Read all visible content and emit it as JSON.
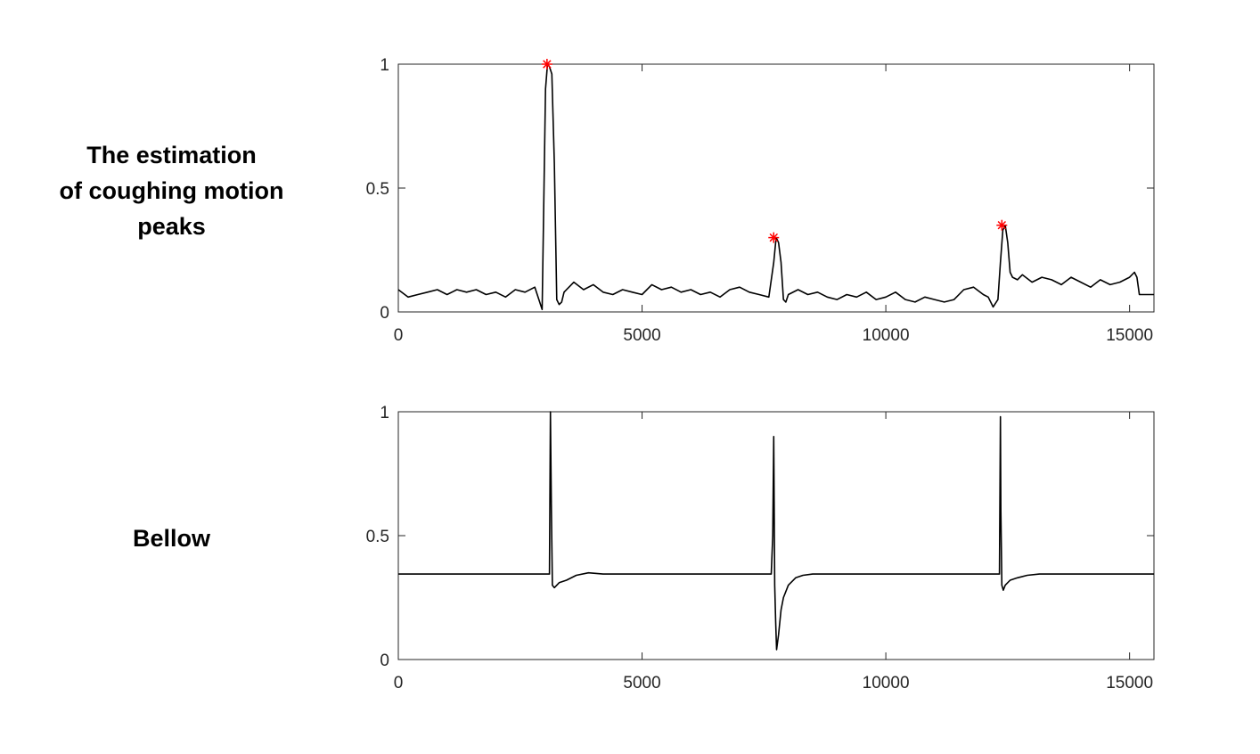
{
  "labels": {
    "top": "The estimation\nof coughing motion\npeaks",
    "bottom": "Bellow"
  },
  "colors": {
    "line": "#000000",
    "axis": "#262626",
    "marker": "#ff0000"
  },
  "chart_data": [
    {
      "type": "line",
      "xlim": [
        0,
        15500
      ],
      "ylim": [
        0,
        1
      ],
      "xticks": [
        0,
        5000,
        10000,
        15000
      ],
      "yticks": [
        0,
        0.5,
        1
      ],
      "xtick_labels": [
        "0",
        "5000",
        "10000",
        "15000"
      ],
      "ytick_labels": [
        "0",
        "0.5",
        "1"
      ],
      "grid": false,
      "series": [
        {
          "x": [
            0,
            200,
            400,
            600,
            800,
            1000,
            1200,
            1400,
            1600,
            1800,
            2000,
            2200,
            2400,
            2600,
            2800,
            2950,
            3020,
            3060,
            3100,
            3150,
            3200,
            3250,
            3300,
            3350,
            3400,
            3500,
            3600,
            3800,
            4000,
            4200,
            4400,
            4600,
            4800,
            5000,
            5200,
            5400,
            5600,
            5800,
            6000,
            6200,
            6400,
            6600,
            6800,
            7000,
            7200,
            7400,
            7600,
            7700,
            7750,
            7800,
            7850,
            7900,
            7950,
            8000,
            8200,
            8400,
            8600,
            8800,
            9000,
            9200,
            9400,
            9600,
            9800,
            10000,
            10200,
            10400,
            10600,
            10800,
            11000,
            11200,
            11400,
            11600,
            11800,
            12000,
            12100,
            12200,
            12300,
            12350,
            12400,
            12450,
            12500,
            12550,
            12600,
            12700,
            12800,
            13000,
            13200,
            13400,
            13600,
            13800,
            14000,
            14200,
            14400,
            14600,
            14800,
            15000,
            15100,
            15150,
            15200,
            15500
          ],
          "y": [
            0.09,
            0.06,
            0.07,
            0.08,
            0.09,
            0.07,
            0.09,
            0.08,
            0.09,
            0.07,
            0.08,
            0.06,
            0.09,
            0.08,
            0.1,
            0.01,
            0.9,
            1.0,
            0.99,
            0.96,
            0.6,
            0.05,
            0.03,
            0.04,
            0.08,
            0.1,
            0.12,
            0.09,
            0.11,
            0.08,
            0.07,
            0.09,
            0.08,
            0.07,
            0.11,
            0.09,
            0.1,
            0.08,
            0.09,
            0.07,
            0.08,
            0.06,
            0.09,
            0.1,
            0.08,
            0.07,
            0.06,
            0.2,
            0.3,
            0.28,
            0.2,
            0.05,
            0.04,
            0.07,
            0.09,
            0.07,
            0.08,
            0.06,
            0.05,
            0.07,
            0.06,
            0.08,
            0.05,
            0.06,
            0.08,
            0.05,
            0.04,
            0.06,
            0.05,
            0.04,
            0.05,
            0.09,
            0.1,
            0.07,
            0.06,
            0.02,
            0.05,
            0.2,
            0.33,
            0.35,
            0.28,
            0.16,
            0.14,
            0.13,
            0.15,
            0.12,
            0.14,
            0.13,
            0.11,
            0.14,
            0.12,
            0.1,
            0.13,
            0.11,
            0.12,
            0.14,
            0.16,
            0.14,
            0.07,
            0.07
          ]
        }
      ],
      "markers": {
        "symbol": "asterisk",
        "x": [
          3050,
          7700,
          12380
        ],
        "y": [
          1.0,
          0.3,
          0.35
        ]
      }
    },
    {
      "type": "line",
      "xlim": [
        0,
        15500
      ],
      "ylim": [
        0,
        1
      ],
      "xticks": [
        0,
        5000,
        10000,
        15000
      ],
      "yticks": [
        0,
        0.5,
        1
      ],
      "xtick_labels": [
        "0",
        "5000",
        "10000",
        "15000"
      ],
      "ytick_labels": [
        "0",
        "0.5",
        "1"
      ],
      "grid": false,
      "series": [
        {
          "x": [
            0,
            3100,
            3120,
            3140,
            3160,
            3200,
            3300,
            3450,
            3650,
            3900,
            4200,
            7650,
            7680,
            7700,
            7720,
            7740,
            7760,
            7800,
            7850,
            7900,
            8000,
            8150,
            8300,
            8500,
            8700,
            12330,
            12350,
            12360,
            12380,
            12410,
            12450,
            12550,
            12700,
            12900,
            13150,
            13400,
            15500
          ],
          "y": [
            0.345,
            0.345,
            1.0,
            0.6,
            0.3,
            0.29,
            0.31,
            0.32,
            0.34,
            0.35,
            0.345,
            0.345,
            0.5,
            0.9,
            0.3,
            0.15,
            0.04,
            0.1,
            0.2,
            0.25,
            0.3,
            0.33,
            0.34,
            0.345,
            0.345,
            0.345,
            0.98,
            0.6,
            0.3,
            0.28,
            0.3,
            0.32,
            0.33,
            0.34,
            0.345,
            0.345,
            0.345
          ]
        }
      ]
    }
  ]
}
